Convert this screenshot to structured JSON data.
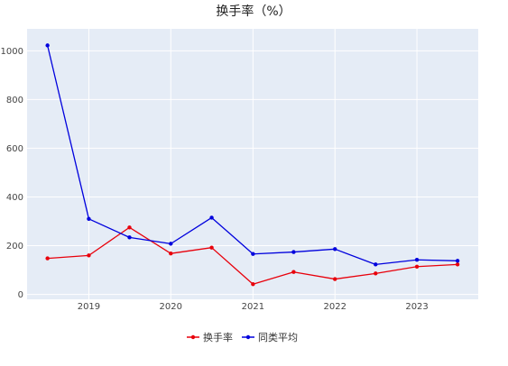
{
  "chart_data": {
    "type": "line",
    "title": "换手率（%）",
    "xlabel": "",
    "ylabel": "",
    "x": [
      "2018-07-01",
      "2019-01-01",
      "2019-07-01",
      "2020-01-01",
      "2020-07-01",
      "2021-01-01",
      "2021-07-01",
      "2022-01-01",
      "2022-07-01",
      "2023-01-01",
      "2023-07-01"
    ],
    "x_ticks": [
      "2019",
      "2020",
      "2021",
      "2022",
      "2023"
    ],
    "y_ticks": [
      "0",
      "200",
      "400",
      "600",
      "800",
      "1000"
    ],
    "ylim": [
      -20,
      1090
    ],
    "grid": true,
    "legend_position": "bottom-center",
    "series": [
      {
        "name": "换手率",
        "color": "#e8000b",
        "values": [
          148,
          160,
          275,
          168,
          192,
          42,
          92,
          63,
          86,
          114,
          123
        ]
      },
      {
        "name": "同类平均",
        "color": "#0000dd",
        "values": [
          1022,
          310,
          234,
          208,
          315,
          166,
          174,
          186,
          123,
          142,
          138
        ]
      }
    ]
  },
  "colors": {
    "plot_bg": "#e5ecf6",
    "grid": "#ffffff"
  }
}
